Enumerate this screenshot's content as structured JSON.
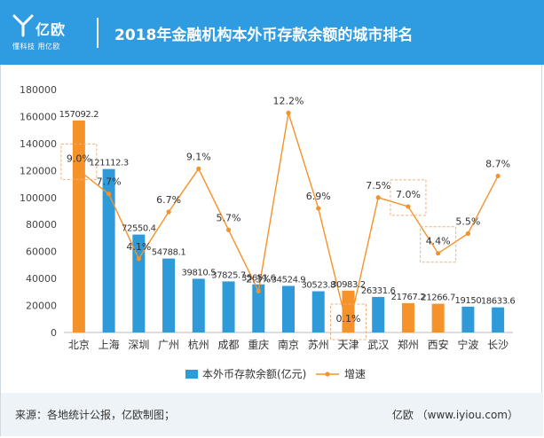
{
  "header": {
    "logo_text": "亿欧",
    "logo_tagline": "懂科技 用亿欧",
    "title": "2018年金融机构本外币存款余额的城市排名"
  },
  "footer": {
    "source": "来源：各地统计公报，亿欧制图；",
    "brand": "亿欧 （www.iyiou.com）"
  },
  "colors": {
    "header_bg": "#2f9be0",
    "bar_blue": "#2e9ad8",
    "bar_orange": "#f5922a",
    "line": "#f5922a",
    "highlight_box": "#f2b078"
  },
  "chart_data": {
    "type": "bar",
    "categories": [
      "北京",
      "上海",
      "深圳",
      "广州",
      "杭州",
      "成都",
      "重庆",
      "南京",
      "苏州",
      "天津",
      "武汉",
      "郑州",
      "西安",
      "宁波",
      "长沙"
    ],
    "series": [
      {
        "name": "本外币存款余额(亿元)",
        "type": "bar",
        "values": [
          157092.2,
          121112.3,
          72550.4,
          54788.1,
          39810.5,
          37825.7,
          35651.6,
          34524.9,
          30523.8,
          30983.2,
          26331.6,
          21767.2,
          21266.7,
          19150,
          18633.6
        ],
        "value_labels": [
          "157092.2",
          "121112.3",
          "72550.4",
          "54788.1",
          "39810.5",
          "37825.7",
          "35651.6",
          "34524.9",
          "30523.8",
          "30983.2",
          "26331.6",
          "21767.2",
          "21266.7",
          "19150",
          "18633.6"
        ],
        "highlight": [
          true,
          false,
          false,
          false,
          false,
          false,
          false,
          false,
          false,
          true,
          false,
          true,
          true,
          false,
          false
        ]
      },
      {
        "name": "增速",
        "type": "line",
        "values": [
          9.0,
          7.7,
          4.1,
          6.7,
          9.1,
          5.7,
          2.3,
          12.2,
          6.9,
          0.1,
          7.5,
          7.0,
          4.4,
          5.5,
          8.7
        ],
        "value_labels": [
          "9.0%",
          "7.7%",
          "4.1%",
          "6.7%",
          "9.1%",
          "5.7%",
          "2.3%",
          "12.2%",
          "6.9%",
          "0.1%",
          "7.5%",
          "7.0%",
          "4.4%",
          "5.5%",
          "8.7%"
        ],
        "boxed": [
          true,
          false,
          false,
          false,
          false,
          false,
          false,
          false,
          false,
          true,
          false,
          true,
          true,
          false,
          false
        ]
      }
    ],
    "yaxis": {
      "min": 0,
      "max": 180000,
      "ticks": [
        0,
        20000,
        40000,
        60000,
        80000,
        100000,
        120000,
        140000,
        160000,
        180000
      ]
    },
    "line_scale": {
      "min": 0,
      "max": 13.5
    },
    "legend": {
      "position": "bottom-center",
      "items": [
        "本外币存款余额(亿元)",
        "增速"
      ]
    },
    "grid": false
  }
}
